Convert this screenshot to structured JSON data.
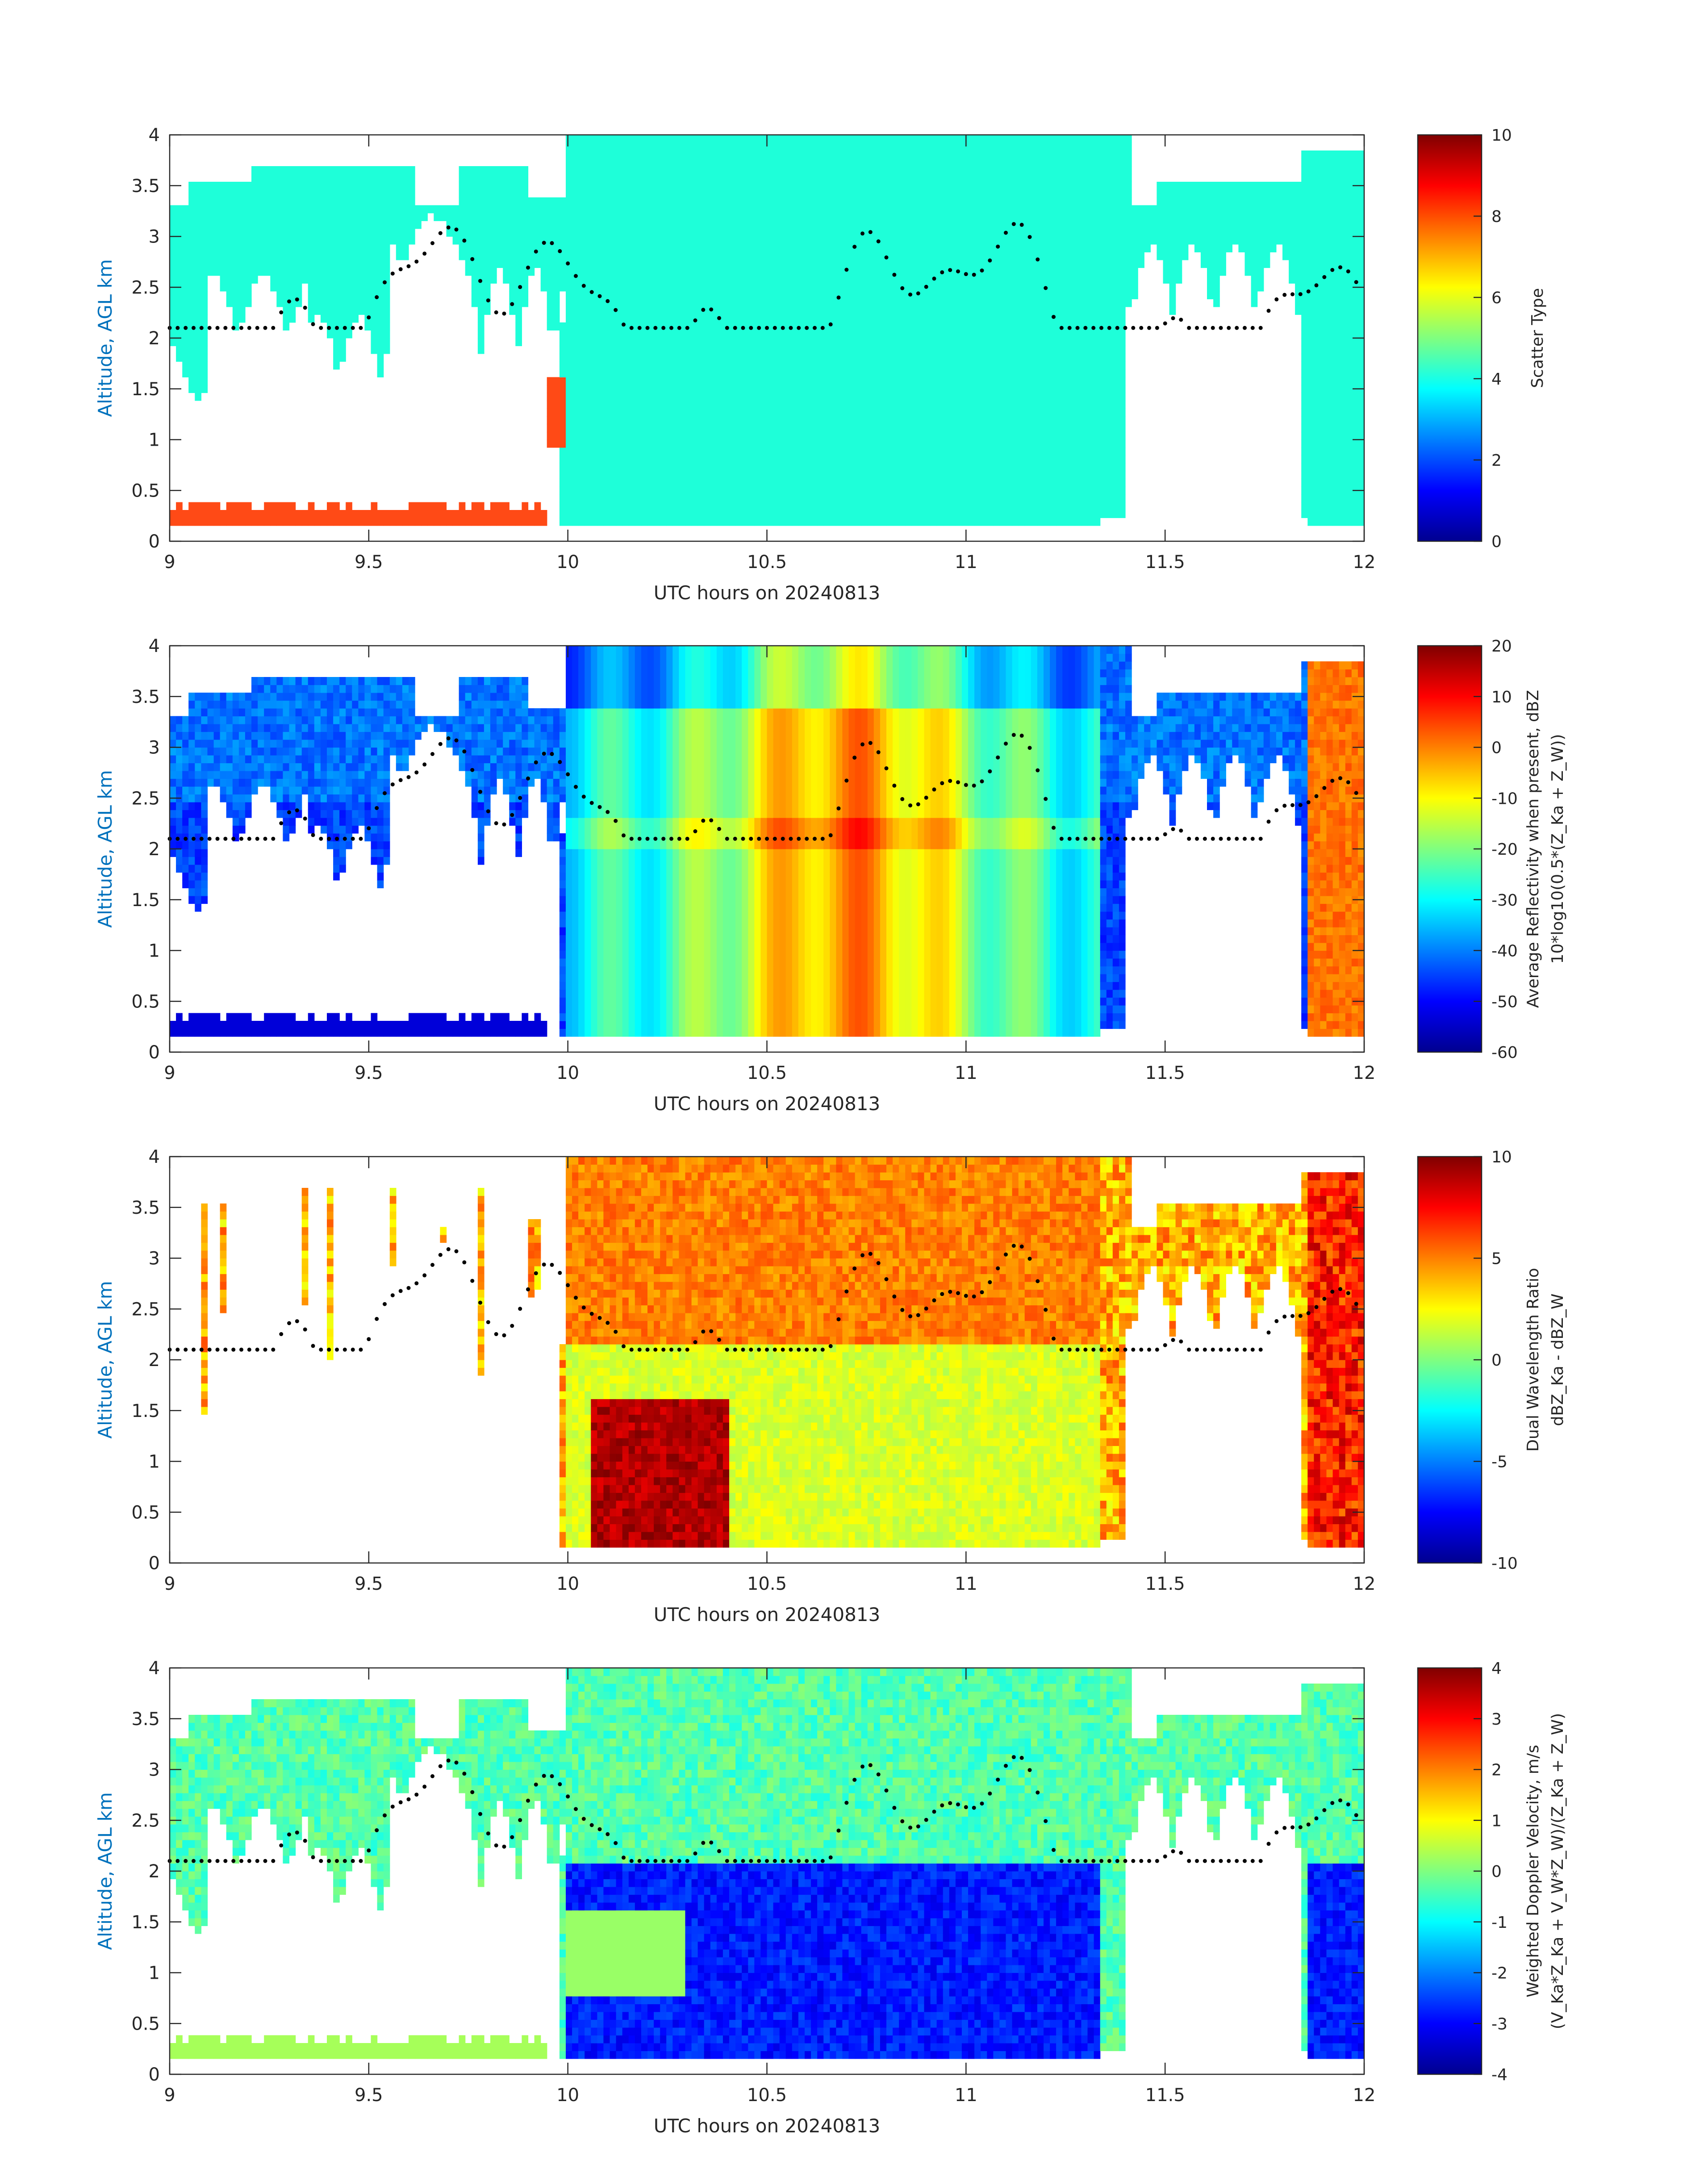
{
  "colors": {
    "axis": "#262626",
    "ylabel": "#0072BD",
    "cloud": "#1EFFD9",
    "precip": "#FF4A16",
    "dots": "#000000"
  },
  "chart_data": [
    {
      "type": "heatmap",
      "id": "scatter-type",
      "xlabel": "UTC hours on 20240813",
      "ylabel": "Altitude, AGL km",
      "xlim": [
        9,
        12
      ],
      "ylim": [
        0,
        4
      ],
      "xticks": [
        "9",
        "9.5",
        "10",
        "10.5",
        "11",
        "11.5",
        "12"
      ],
      "yticks": [
        "0",
        "0.5",
        "1",
        "1.5",
        "2",
        "2.5",
        "3",
        "3.5",
        "4"
      ],
      "colorbar": {
        "label": "Scatter Type",
        "label2": "",
        "range": [
          0,
          10
        ],
        "ticks": [
          "0",
          "2",
          "4",
          "6",
          "8",
          "10"
        ]
      },
      "grid": false
    },
    {
      "type": "heatmap",
      "id": "reflectivity",
      "xlabel": "UTC hours on 20240813",
      "ylabel": "Altitude, AGL km",
      "xlim": [
        9,
        12
      ],
      "ylim": [
        0,
        4
      ],
      "xticks": [
        "9",
        "9.5",
        "10",
        "10.5",
        "11",
        "11.5",
        "12"
      ],
      "yticks": [
        "0",
        "0.5",
        "1",
        "1.5",
        "2",
        "2.5",
        "3",
        "3.5",
        "4"
      ],
      "colorbar": {
        "label": "Average Reflectivity when present, dBZ",
        "label2": "10*log10(0.5*(Z_Ka + Z_W))",
        "range": [
          -60,
          20
        ],
        "ticks": [
          "-60",
          "-50",
          "-40",
          "-30",
          "-20",
          "-10",
          "0",
          "10",
          "20"
        ]
      },
      "grid": false
    },
    {
      "type": "heatmap",
      "id": "dual-wavelength-ratio",
      "xlabel": "UTC hours on 20240813",
      "ylabel": "Altitude, AGL km",
      "xlim": [
        9,
        12
      ],
      "ylim": [
        0,
        4
      ],
      "xticks": [
        "9",
        "9.5",
        "10",
        "10.5",
        "11",
        "11.5",
        "12"
      ],
      "yticks": [
        "0",
        "0.5",
        "1",
        "1.5",
        "2",
        "2.5",
        "3",
        "3.5",
        "4"
      ],
      "colorbar": {
        "label": "Dual Wavelength Ratio",
        "label2": "dBZ_Ka - dBZ_W",
        "range": [
          -10,
          10
        ],
        "ticks": [
          "-10",
          "-5",
          "0",
          "5",
          "10"
        ]
      },
      "grid": false
    },
    {
      "type": "heatmap",
      "id": "doppler-velocity",
      "xlabel": "UTC hours on 20240813",
      "ylabel": "Altitude, AGL km",
      "xlim": [
        9,
        12
      ],
      "ylim": [
        0,
        4
      ],
      "xticks": [
        "9",
        "9.5",
        "10",
        "10.5",
        "11",
        "11.5",
        "12"
      ],
      "yticks": [
        "0",
        "0.5",
        "1",
        "1.5",
        "2",
        "2.5",
        "3",
        "3.5",
        "4"
      ],
      "colorbar": {
        "label": "Weighted Doppler Velocity, m/s",
        "label2": "(V_Ka*Z_Ka + V_W*Z_W)/(Z_Ka + Z_W)",
        "range": [
          -4,
          4
        ],
        "ticks": [
          "-4",
          "-3",
          "-2",
          "-1",
          "0",
          "1",
          "2",
          "3",
          "4"
        ]
      },
      "grid": false
    }
  ]
}
